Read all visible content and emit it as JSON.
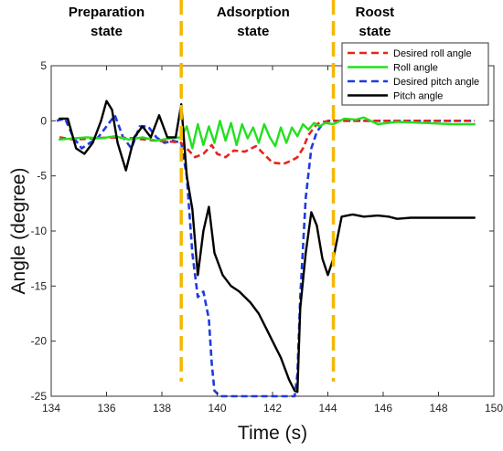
{
  "chart_data": {
    "type": "line",
    "xlabel": "Time (s)",
    "ylabel": "Angle (degree)",
    "xlim": [
      134,
      150
    ],
    "ylim": [
      -25,
      5
    ],
    "xticks": [
      134,
      136,
      138,
      140,
      142,
      144,
      146,
      148,
      150
    ],
    "yticks": [
      5,
      0,
      -5,
      -10,
      -15,
      -20,
      -25
    ],
    "grid": false,
    "legend_position": "top-right",
    "state_labels": [
      {
        "lines": [
          "Preparation",
          "state"
        ],
        "x": 136.0
      },
      {
        "lines": [
          "Adsorption",
          "state"
        ],
        "x": 141.3
      },
      {
        "lines": [
          "Roost",
          "state"
        ],
        "x": 145.7
      }
    ],
    "state_boundaries": [
      138.7,
      144.2
    ],
    "boundary_color": "#F5B800",
    "series": [
      {
        "name": "Desired roll angle",
        "color": "#E8231F",
        "dash": "dashed",
        "x": [
          134.3,
          134.8,
          135.5,
          136.2,
          137.0,
          137.8,
          138.4,
          138.7,
          138.9,
          139.2,
          139.5,
          139.8,
          140.0,
          140.3,
          140.6,
          141.0,
          141.4,
          141.8,
          142.0,
          142.4,
          142.7,
          142.9,
          143.1,
          143.3,
          143.6,
          143.8,
          144.2,
          144.8,
          145.5,
          146.5,
          147.5,
          148.5,
          149.3
        ],
        "y": [
          -1.5,
          -1.7,
          -1.6,
          -1.5,
          -1.6,
          -1.8,
          -1.9,
          -2.0,
          -2.5,
          -3.3,
          -3.0,
          -2.2,
          -3.0,
          -3.3,
          -2.7,
          -2.8,
          -2.3,
          -3.3,
          -3.8,
          -3.9,
          -3.6,
          -3.3,
          -2.5,
          -1.3,
          -0.3,
          -0.1,
          0.0,
          0.0,
          0.0,
          0.0,
          0.0,
          0.0,
          0.0
        ]
      },
      {
        "name": "Roll angle",
        "color": "#22E01E",
        "dash": "solid",
        "x": [
          134.3,
          134.8,
          135.3,
          135.8,
          136.3,
          136.8,
          137.3,
          137.8,
          138.3,
          138.7,
          138.9,
          139.1,
          139.3,
          139.5,
          139.7,
          139.9,
          140.1,
          140.3,
          140.5,
          140.7,
          140.9,
          141.1,
          141.3,
          141.5,
          141.7,
          141.9,
          142.1,
          142.3,
          142.5,
          142.7,
          142.9,
          143.1,
          143.3,
          143.5,
          143.7,
          143.9,
          144.2,
          144.6,
          145.0,
          145.3,
          145.8,
          146.5,
          147.5,
          148.5,
          149.3
        ],
        "y": [
          -1.7,
          -1.6,
          -1.5,
          -1.6,
          -1.4,
          -1.7,
          -1.5,
          -1.8,
          -1.6,
          -1.5,
          -0.5,
          -2.5,
          -0.3,
          -2.2,
          -0.5,
          -2.0,
          0.0,
          -1.8,
          -0.2,
          -2.2,
          -0.3,
          -1.6,
          -0.6,
          -2.0,
          -0.3,
          -1.5,
          -2.3,
          -0.6,
          -2.0,
          -0.6,
          -1.4,
          -0.3,
          -0.8,
          -0.2,
          -0.5,
          -0.2,
          -0.3,
          0.2,
          0.1,
          0.3,
          -0.3,
          -0.1,
          -0.2,
          -0.3,
          -0.3
        ]
      },
      {
        "name": "Desired pitch angle",
        "color": "#1E3BE0",
        "dash": "dashed",
        "x": [
          134.2,
          134.5,
          134.8,
          135.1,
          135.4,
          135.7,
          136.0,
          136.3,
          136.6,
          136.9,
          137.2,
          137.5,
          137.8,
          138.1,
          138.4,
          138.7,
          138.9,
          139.1,
          139.3,
          139.5,
          139.7,
          139.8,
          139.9,
          140.1,
          140.5,
          141.0,
          141.5,
          142.0,
          142.5,
          142.8,
          142.9,
          143.0,
          143.2,
          143.4,
          143.6,
          143.8,
          144.0,
          144.2,
          144.6,
          145.0,
          145.5,
          146.5,
          147.5,
          148.5,
          149.3
        ],
        "y": [
          0.0,
          0.2,
          -1.5,
          -2.5,
          -2.0,
          -1.5,
          -0.5,
          0.5,
          -1.5,
          -2.5,
          -0.5,
          -0.5,
          -1.5,
          -2.0,
          -1.8,
          -2.0,
          -5.0,
          -12.0,
          -16.0,
          -15.5,
          -18.0,
          -22.0,
          -24.5,
          -25.0,
          -25.0,
          -25.0,
          -25.0,
          -25.0,
          -25.0,
          -25.0,
          -23.0,
          -16.0,
          -7.0,
          -2.5,
          -1.0,
          -0.3,
          0.0,
          0.0,
          0.0,
          0.0,
          0.0,
          0.0,
          0.0,
          0.0,
          0.0
        ]
      },
      {
        "name": "Pitch angle",
        "color": "#000000",
        "dash": "solid",
        "x": [
          134.3,
          134.6,
          134.9,
          135.2,
          135.5,
          135.8,
          136.0,
          136.2,
          136.4,
          136.7,
          137.0,
          137.3,
          137.6,
          137.9,
          138.2,
          138.5,
          138.7,
          138.9,
          139.1,
          139.3,
          139.5,
          139.7,
          139.9,
          140.2,
          140.5,
          140.8,
          141.2,
          141.5,
          141.8,
          142.0,
          142.3,
          142.6,
          142.8,
          142.9,
          143.0,
          143.2,
          143.4,
          143.6,
          143.8,
          144.0,
          144.2,
          144.5,
          144.9,
          145.3,
          145.8,
          146.2,
          146.5,
          147.0,
          148.0,
          149.3
        ],
        "y": [
          0.2,
          0.2,
          -2.5,
          -3.0,
          -2.0,
          0.0,
          1.8,
          1.0,
          -2.0,
          -4.5,
          -1.5,
          -0.5,
          -1.5,
          0.5,
          -1.5,
          -1.5,
          1.5,
          -5.0,
          -8.0,
          -14.0,
          -10.0,
          -7.8,
          -12.0,
          -14.0,
          -15.0,
          -15.5,
          -16.5,
          -17.5,
          -19.0,
          -20.0,
          -21.5,
          -23.5,
          -24.5,
          -24.6,
          -17.0,
          -12.0,
          -8.3,
          -9.5,
          -12.5,
          -14.0,
          -12.5,
          -8.7,
          -8.5,
          -8.7,
          -8.6,
          -8.7,
          -8.9,
          -8.8,
          -8.8,
          -8.8
        ]
      }
    ]
  }
}
